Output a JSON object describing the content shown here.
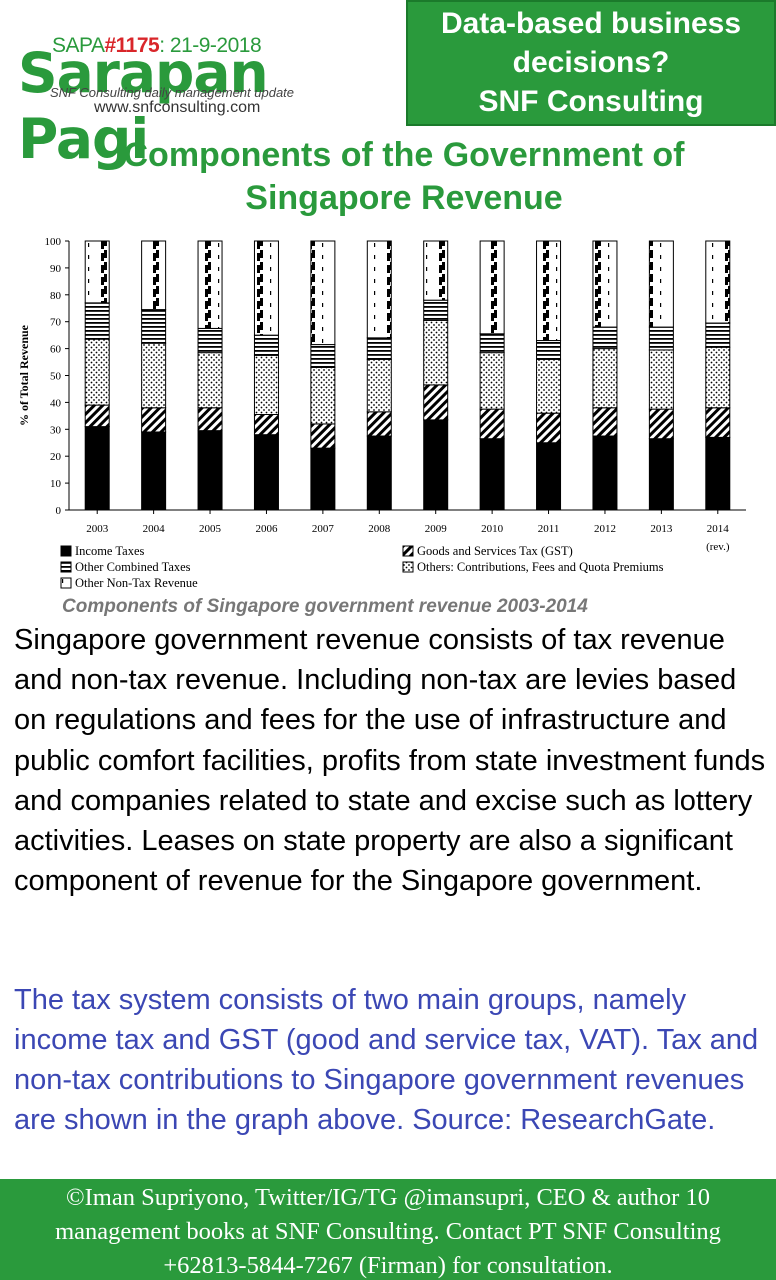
{
  "header": {
    "sapa_prefix": "SAPA",
    "sapa_number": "#1175",
    "sapa_date": ": 21-9-2018",
    "brand": "Sarapan Pagi",
    "tagline": "SNF Consulting daily management update",
    "website": "www.snfconsulting.com"
  },
  "promo": {
    "lines": [
      "Data-based business",
      "decisions?",
      "SNF Consulting"
    ]
  },
  "title": {
    "lines": [
      "Components of the Government of",
      "Singapore Revenue"
    ]
  },
  "chart_data": {
    "type": "bar",
    "stacked": true,
    "ylabel": "% of Total Revenue",
    "xlabel": "",
    "ylim": [
      0,
      100
    ],
    "yticks": [
      0,
      10,
      20,
      30,
      40,
      50,
      60,
      70,
      80,
      90,
      100
    ],
    "categories": [
      "2003",
      "2004",
      "2005",
      "2006",
      "2007",
      "2008",
      "2009",
      "2010",
      "2011",
      "2012",
      "2013",
      "2014"
    ],
    "category_note": "(rev.)",
    "series": [
      {
        "name": "Income Taxes",
        "pattern": "solid",
        "values": [
          31,
          29,
          29.5,
          28,
          23,
          27.5,
          33.5,
          26.5,
          25,
          27.5,
          26.5,
          27
        ]
      },
      {
        "name": "Goods and Services Tax (GST)",
        "pattern": "diagonal",
        "values": [
          8,
          9,
          8.5,
          7.5,
          9,
          9,
          13,
          11,
          11,
          10.5,
          11,
          11
        ]
      },
      {
        "name": "Others: Contributions, Fees and Quota Premiums",
        "pattern": "dots",
        "values": [
          24.5,
          24,
          20.5,
          22,
          21,
          19.5,
          24,
          21,
          20,
          22,
          22,
          22.5
        ]
      },
      {
        "name": "Other Combined Taxes",
        "pattern": "horizontal",
        "values": [
          13.5,
          12.5,
          9,
          7.5,
          8.5,
          8,
          7.5,
          7,
          7,
          8,
          8.5,
          9
        ]
      },
      {
        "name": "Other Non-Tax Revenue",
        "pattern": "dashed-vertical",
        "values": [
          23,
          25.5,
          32.5,
          35,
          38.5,
          36,
          22,
          34.5,
          37,
          32,
          32,
          30.5
        ]
      }
    ],
    "legend": {
      "placement": "bottom",
      "left": [
        "Income Taxes",
        "Other Combined Taxes",
        "Other Non-Tax Revenue"
      ],
      "right": [
        "Goods and Services Tax (GST)",
        "Others: Contributions, Fees and Quota Premiums"
      ]
    },
    "caption": "Components of Singapore government revenue 2003-2014"
  },
  "body": {
    "paragraph1": "Singapore government revenue consists of tax revenue and non-tax revenue. Including non-tax are levies based on regulations and fees for the use of infrastructure and public comfort facilities, profits from state investment funds and companies related to state and excise such as lottery activities. Leases on state property are also a significant component of revenue for the Singapore government.",
    "paragraph2": "The tax system consists of two main groups, namely income tax and GST (good and service tax, VAT). Tax and non-tax contributions to Singapore government revenues are shown in the graph above. Source: ResearchGate."
  },
  "footer": {
    "lines": [
      "©Iman Supriyono, Twitter/IG/TG @imansupri, CEO & author 10",
      "management books at SNF Consulting. Contact PT SNF Consulting",
      "+62813-5844-7267 (Firman) for consultation."
    ]
  },
  "colors": {
    "brand_green": "#2a9a3c",
    "sapa_red": "#d9262a",
    "body_blue": "#3b47b4"
  }
}
